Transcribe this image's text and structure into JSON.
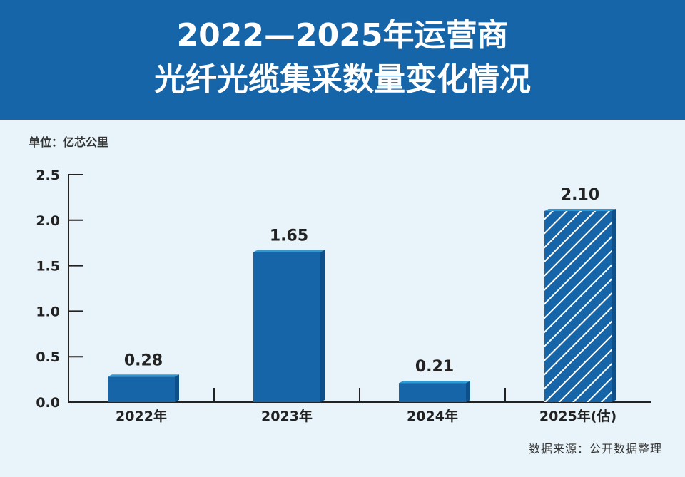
{
  "header": {
    "title_line1": "2022—2025年运营商",
    "title_line2": "光纤光缆集采数量变化情况"
  },
  "unit_label": "单位：亿芯公里",
  "source_label": "数据来源：公开数据整理",
  "colors": {
    "header_bg": "#1565a8",
    "page_bg": "#e8f4f9",
    "bar": "#1565a8",
    "bar_top": "#2a9bd8",
    "bar_side": "#0d4f86"
  },
  "chart_data": {
    "type": "bar",
    "title": "2022—2025年运营商光纤光缆集采数量变化情况",
    "xlabel": "",
    "ylabel": "",
    "categories": [
      "2022年",
      "2023年",
      "2024年",
      "2025年(估)"
    ],
    "values": [
      0.28,
      1.65,
      0.21,
      2.1
    ],
    "value_labels": [
      "0.28",
      "1.65",
      "0.21",
      "2.10"
    ],
    "estimated": [
      false,
      false,
      false,
      true
    ],
    "ylim": [
      0,
      2.5
    ],
    "yticks": [
      "0.0",
      "0.5",
      "1.0",
      "1.5",
      "2.0",
      "2.5"
    ],
    "grid": false,
    "legend": "none"
  }
}
